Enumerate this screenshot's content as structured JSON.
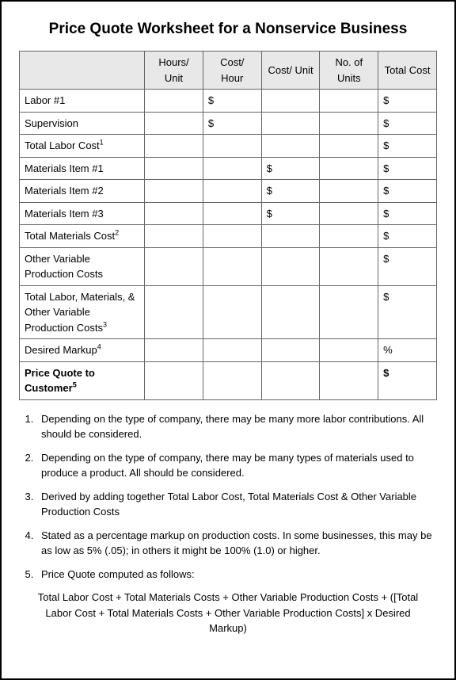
{
  "title": "Price Quote Worksheet for a Nonservice Business",
  "headers": {
    "label": "",
    "hoursUnit": "Hours/ Unit",
    "costHour": "Cost/ Hour",
    "costUnit": "Cost/ Unit",
    "noUnits": "No. of Units",
    "totalCost": "Total Cost"
  },
  "rows": [
    {
      "label": "Labor #1",
      "sup": "",
      "hoursUnit": "",
      "costHour": "$",
      "costUnit": "",
      "noUnits": "",
      "totalCost": "$",
      "bold": false
    },
    {
      "label": "Supervision",
      "sup": "",
      "hoursUnit": "",
      "costHour": "$",
      "costUnit": "",
      "noUnits": "",
      "totalCost": "$",
      "bold": false
    },
    {
      "label": "Total Labor Cost",
      "sup": "1",
      "hoursUnit": "",
      "costHour": "",
      "costUnit": "",
      "noUnits": "",
      "totalCost": "$",
      "bold": false
    },
    {
      "label": "Materials Item #1",
      "sup": "",
      "hoursUnit": "",
      "costHour": "",
      "costUnit": "$",
      "noUnits": "",
      "totalCost": "$",
      "bold": false
    },
    {
      "label": "Materials Item #2",
      "sup": "",
      "hoursUnit": "",
      "costHour": "",
      "costUnit": "$",
      "noUnits": "",
      "totalCost": "$",
      "bold": false
    },
    {
      "label": "Materials Item #3",
      "sup": "",
      "hoursUnit": "",
      "costHour": "",
      "costUnit": "$",
      "noUnits": "",
      "totalCost": "$",
      "bold": false
    },
    {
      "label": "Total Materials Cost",
      "sup": "2",
      "hoursUnit": "",
      "costHour": "",
      "costUnit": "",
      "noUnits": "",
      "totalCost": "$",
      "bold": false
    },
    {
      "label": "Other Variable Production Costs",
      "sup": "",
      "hoursUnit": "",
      "costHour": "",
      "costUnit": "",
      "noUnits": "",
      "totalCost": "$",
      "bold": false
    },
    {
      "label": "Total Labor, Materials, & Other Variable Production Costs",
      "sup": "3",
      "hoursUnit": "",
      "costHour": "",
      "costUnit": "",
      "noUnits": "",
      "totalCost": "$",
      "bold": false
    },
    {
      "label": "Desired Markup",
      "sup": "4",
      "hoursUnit": "",
      "costHour": "",
      "costUnit": "",
      "noUnits": "",
      "totalCost": "%",
      "bold": false
    },
    {
      "label": "Price Quote to Customer",
      "sup": "5",
      "hoursUnit": "",
      "costHour": "",
      "costUnit": "",
      "noUnits": "",
      "totalCost": "$",
      "bold": true
    }
  ],
  "notes": [
    "Depending on the type of company, there may be many more labor contributions. All should be considered.",
    "Depending on the type of company, there may be many types of materials used to produce a product. All should be considered.",
    "Derived by adding together Total Labor Cost, Total Materials Cost & Other Variable Production Costs",
    "Stated as a percentage markup on production costs. In some businesses, this may be as low as 5% (.05); in others it might be 100% (1.0) or higher.",
    "Price Quote computed as follows:"
  ],
  "formula": "Total Labor Cost + Total Materials Costs + Other Variable Production Costs + ([Total Labor Cost + Total Materials Costs + Other Variable Production Costs] x Desired Markup)"
}
